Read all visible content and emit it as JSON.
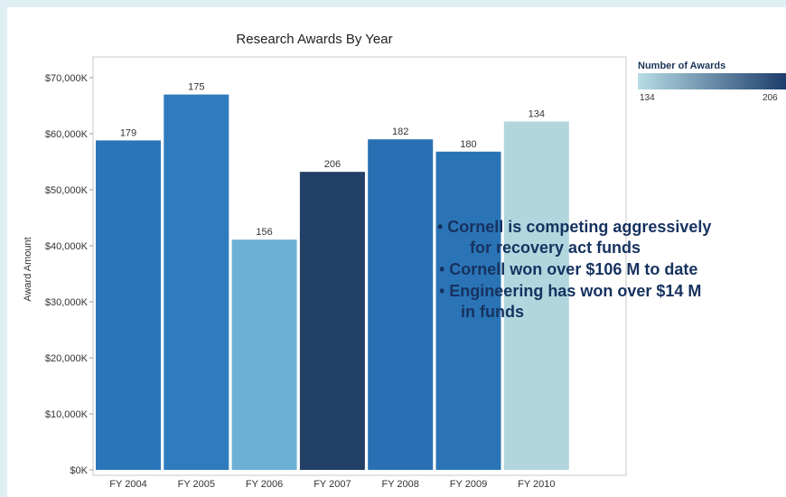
{
  "chart_data": {
    "type": "bar",
    "title": "Research Awards By Year",
    "xlabel": "",
    "ylabel": "Award Amount",
    "categories": [
      "FY 2004",
      "FY 2005",
      "FY 2006",
      "FY 2007",
      "FY 2008",
      "FY 2009",
      "FY 2010"
    ],
    "values": [
      58800,
      67000,
      41100,
      53200,
      59000,
      56800,
      62200
    ],
    "value_unit": "$K",
    "bar_labels": [
      "179",
      "175",
      "156",
      "206",
      "182",
      "180",
      "134"
    ],
    "color_values": [
      179,
      175,
      156,
      206,
      182,
      180,
      134
    ],
    "ylim": [
      0,
      70000
    ],
    "yticks": [
      0,
      10000,
      20000,
      30000,
      40000,
      50000,
      60000,
      70000
    ],
    "ytick_labels": [
      "$0K",
      "$10,000K",
      "$20,000K",
      "$30,000K",
      "$40,000K",
      "$50,000K",
      "$60,000K",
      "$70,000K"
    ],
    "grid": false,
    "legend": {
      "title": "Number of Awards",
      "min_label": "134",
      "max_label": "206",
      "placement": "top-right",
      "color_low": "#b8dce6",
      "color_high": "#1d3d6b"
    }
  },
  "colors": {
    "bar_134": "#b2d6de",
    "bar_156": "#6cb0d6",
    "bar_175": "#2f7bbd",
    "bar_179": "#2a75b9",
    "bar_180": "#2a74b6",
    "bar_182": "#2870b3",
    "bar_206": "#223f66",
    "bullet_text": "#16325f",
    "background": "#dfeef2"
  },
  "bullets": {
    "b1": "• Cornell is competing aggressively",
    "b1_cont": "for recovery act funds",
    "b2": "•  Cornell won over $106 M to date",
    "b3": "•  Engineering has won over $14 M",
    "b3_cont": "in funds"
  }
}
